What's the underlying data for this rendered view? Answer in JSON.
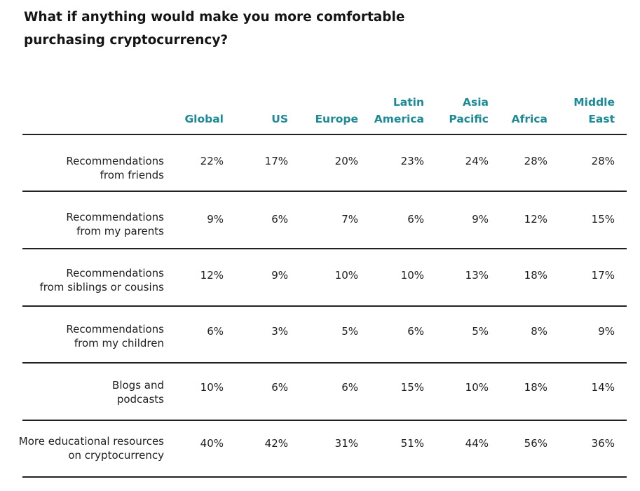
{
  "chart_data": {
    "type": "table",
    "title_lines": [
      "What if anything would make you more comfortable",
      "purchasing cryptocurrency?"
    ],
    "columns": [
      {
        "lines": [
          "Global"
        ]
      },
      {
        "lines": [
          "US"
        ]
      },
      {
        "lines": [
          "Europe"
        ]
      },
      {
        "lines": [
          "Latin",
          "America"
        ]
      },
      {
        "lines": [
          "Asia",
          "Pacific"
        ]
      },
      {
        "lines": [
          "Africa"
        ]
      },
      {
        "lines": [
          "Middle",
          "East"
        ]
      }
    ],
    "rows": [
      {
        "label_lines": [
          "Recommendations",
          "from friends"
        ],
        "values": [
          "22%",
          "17%",
          "20%",
          "23%",
          "24%",
          "28%",
          "28%"
        ]
      },
      {
        "label_lines": [
          "Recommendations",
          "from my parents"
        ],
        "values": [
          "9%",
          "6%",
          "7%",
          "6%",
          "9%",
          "12%",
          "15%"
        ]
      },
      {
        "label_lines": [
          "Recommendations",
          "from siblings or cousins"
        ],
        "values": [
          "12%",
          "9%",
          "10%",
          "10%",
          "13%",
          "18%",
          "17%"
        ]
      },
      {
        "label_lines": [
          "Recommendations",
          "from my children"
        ],
        "values": [
          "6%",
          "3%",
          "5%",
          "6%",
          "5%",
          "8%",
          "9%"
        ]
      },
      {
        "label_lines": [
          "Blogs and",
          "podcasts"
        ],
        "values": [
          "10%",
          "6%",
          "6%",
          "15%",
          "10%",
          "18%",
          "14%"
        ]
      },
      {
        "label_lines": [
          "More educational resources",
          "on cryptocurrency"
        ],
        "values": [
          "40%",
          "42%",
          "31%",
          "51%",
          "44%",
          "56%",
          "36%"
        ]
      }
    ],
    "colors": {
      "header": "#1d8a96",
      "text": "#1f1f1f",
      "rule": "#222222"
    }
  }
}
